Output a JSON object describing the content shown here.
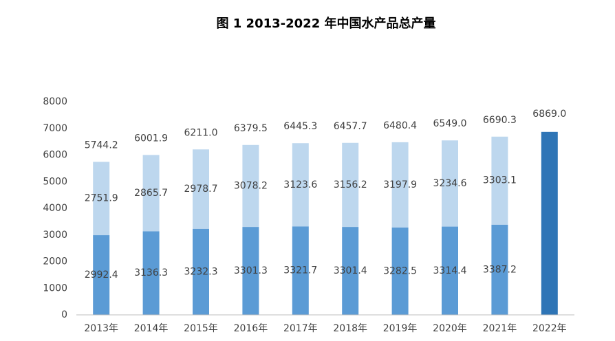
{
  "chart_data": {
    "type": "bar",
    "stacked": true,
    "title": "图 1  2013-2022 年中国水产品总产量",
    "categories": [
      "2013年",
      "2014年",
      "2015年",
      "2016年",
      "2017年",
      "2018年",
      "2019年",
      "2020年",
      "2021年",
      "2022年"
    ],
    "series": [
      {
        "color": "#5b9bd5",
        "values": [
          2992.4,
          3136.3,
          3232.3,
          3301.3,
          3321.7,
          3301.4,
          3282.5,
          3314.4,
          3387.2,
          null
        ]
      },
      {
        "color": "#bdd7ee",
        "values": [
          2751.9,
          2865.7,
          2978.7,
          3078.2,
          3123.6,
          3156.2,
          3197.9,
          3234.6,
          3303.1,
          null
        ]
      }
    ],
    "totals": {
      "color": "#2e75b6",
      "values": [
        5744.2,
        6001.9,
        6211.0,
        6379.5,
        6445.3,
        6457.7,
        6480.4,
        6549.0,
        6690.3,
        6869.0
      ],
      "value_labels": [
        "5744.2",
        "6001.9",
        "6211.0",
        "6379.5",
        "6445.3",
        "6457.7",
        "6480.4",
        "6549.0",
        "6690.3",
        "6869.0"
      ]
    },
    "ylim": [
      0,
      8000
    ],
    "yticks": [
      0,
      1000,
      2000,
      3000,
      4000,
      5000,
      6000,
      7000,
      8000
    ]
  }
}
